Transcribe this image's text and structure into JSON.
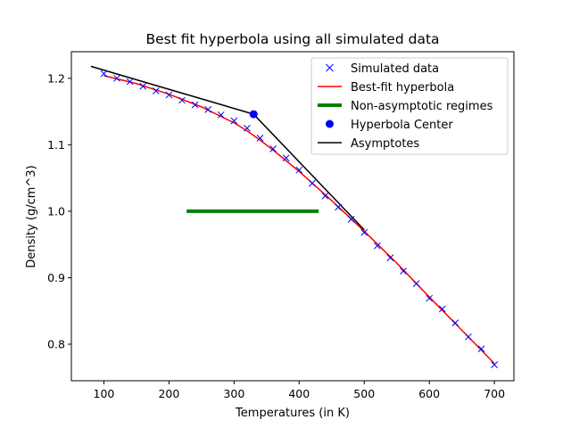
{
  "chart_data": {
    "type": "line",
    "title": "Best fit hyperbola using all simulated data",
    "xlabel": "Temperatures (in K)",
    "ylabel": "Density (g/cm^3)",
    "xlim": [
      50,
      730
    ],
    "ylim": [
      0.745,
      1.24
    ],
    "xticks": [
      "100",
      "200",
      "300",
      "400",
      "500",
      "600",
      "700"
    ],
    "yticks": [
      "0.8",
      "0.9",
      "1.0",
      "1.1",
      "1.2"
    ],
    "legend_position": "top-right",
    "grid": false,
    "series": [
      {
        "name": "Simulated data",
        "kind": "markers-x",
        "color": "#0000ff",
        "x": [
          100,
          120,
          140,
          160,
          180,
          200,
          220,
          240,
          260,
          280,
          300,
          320,
          340,
          360,
          380,
          400,
          420,
          440,
          460,
          480,
          500,
          520,
          540,
          560,
          580,
          600,
          620,
          640,
          660,
          680,
          700
        ],
        "y": [
          1.207,
          1.2,
          1.195,
          1.188,
          1.181,
          1.175,
          1.167,
          1.16,
          1.153,
          1.145,
          1.136,
          1.125,
          1.11,
          1.094,
          1.08,
          1.062,
          1.042,
          1.023,
          1.006,
          0.988,
          0.968,
          0.948,
          0.93,
          0.91,
          0.891,
          0.869,
          0.853,
          0.832,
          0.811,
          0.793,
          0.769
        ]
      },
      {
        "name": "Best-fit hyperbola",
        "kind": "line",
        "color": "#ff0000",
        "x": [
          100,
          150,
          200,
          250,
          300,
          320,
          340,
          360,
          380,
          400,
          450,
          500,
          550,
          600,
          650,
          700
        ],
        "y": [
          1.204,
          1.192,
          1.176,
          1.157,
          1.133,
          1.121,
          1.107,
          1.092,
          1.076,
          1.06,
          1.016,
          0.97,
          0.922,
          0.871,
          0.821,
          0.771
        ]
      },
      {
        "name": "Non-asymptotic regimes",
        "kind": "thick-line",
        "color": "#008000",
        "x": [
          227,
          430
        ],
        "y": [
          1.0,
          1.0
        ]
      },
      {
        "name": "Hyperbola Center",
        "kind": "marker-dot",
        "color": "#0000ff",
        "x": [
          330
        ],
        "y": [
          1.146
        ]
      },
      {
        "name": "Asymptotes",
        "kind": "polyline",
        "color": "#000000",
        "x": [
          80,
          330,
          500
        ],
        "y": [
          1.218,
          1.146,
          0.972
        ]
      }
    ]
  }
}
